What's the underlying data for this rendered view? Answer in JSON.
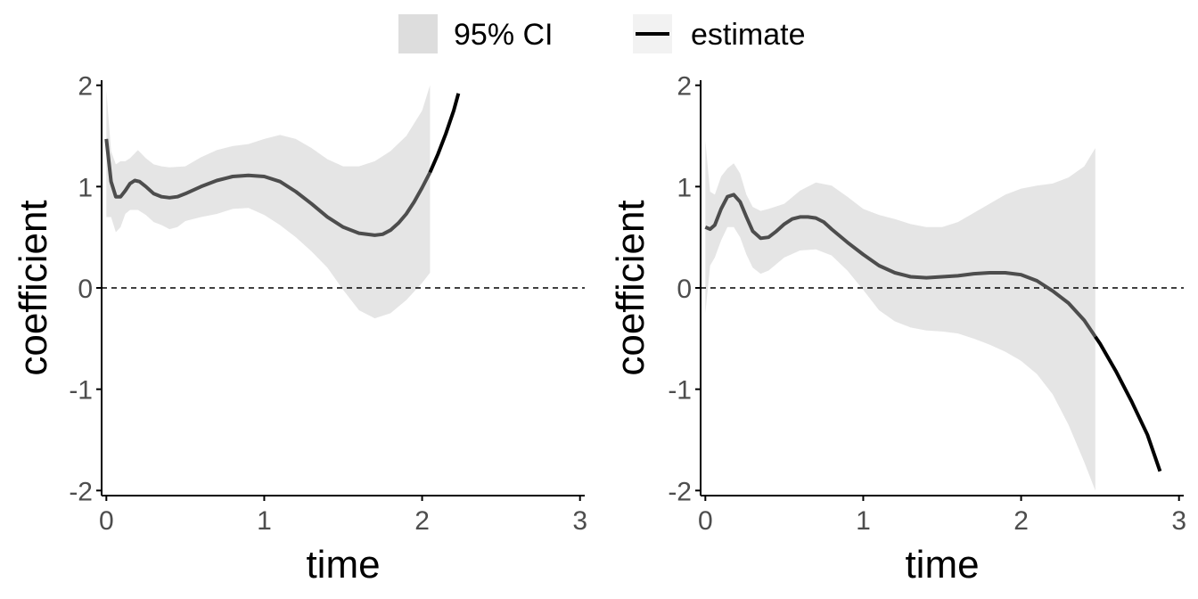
{
  "legend": {
    "items": [
      {
        "label": "95% CI",
        "key": "ribbon"
      },
      {
        "label": "estimate",
        "key": "line"
      }
    ]
  },
  "colors": {
    "ribbon": "#e5e5e5",
    "legend_ribbon": "#dddddd",
    "legend_key_bg": "#f2f2f2",
    "line_in_ci": "#4d4d4d",
    "line_extrap": "#000000",
    "zero_line": "#000000",
    "axis": "#000000",
    "tick_text": "#4d4d4d"
  },
  "chart_data": [
    {
      "type": "line",
      "xlabel": "time",
      "ylabel": "coefficient",
      "xlim": [
        -0.03,
        3.03
      ],
      "ylim": [
        -2.05,
        2.05
      ],
      "xticks": [
        0,
        1,
        2,
        3
      ],
      "yticks": [
        -2,
        -1,
        0,
        1,
        2
      ],
      "xtick_labels": [
        "0",
        "1",
        "2",
        "3"
      ],
      "ytick_labels": [
        "-2",
        "-1",
        "0",
        "1",
        "2"
      ],
      "reference_line": {
        "y": 0,
        "style": "dashed"
      },
      "ci_end": 2.05,
      "estimate": {
        "x": [
          0.0,
          0.03,
          0.06,
          0.09,
          0.12,
          0.15,
          0.18,
          0.21,
          0.25,
          0.3,
          0.35,
          0.4,
          0.45,
          0.5,
          0.6,
          0.7,
          0.8,
          0.9,
          1.0,
          1.1,
          1.2,
          1.3,
          1.4,
          1.5,
          1.6,
          1.7,
          1.75,
          1.8,
          1.85,
          1.9,
          1.95,
          2.0,
          2.05,
          2.1,
          2.15,
          2.2,
          2.23
        ],
        "y": [
          1.47,
          1.05,
          0.9,
          0.9,
          0.96,
          1.03,
          1.06,
          1.05,
          1.0,
          0.93,
          0.9,
          0.89,
          0.9,
          0.93,
          1.0,
          1.06,
          1.1,
          1.11,
          1.1,
          1.05,
          0.95,
          0.83,
          0.7,
          0.6,
          0.54,
          0.52,
          0.53,
          0.57,
          0.64,
          0.73,
          0.85,
          0.99,
          1.14,
          1.32,
          1.52,
          1.75,
          1.92
        ]
      },
      "ci_upper": {
        "x": [
          0.0,
          0.03,
          0.06,
          0.09,
          0.12,
          0.15,
          0.2,
          0.25,
          0.3,
          0.35,
          0.4,
          0.5,
          0.6,
          0.7,
          0.8,
          0.9,
          1.0,
          1.1,
          1.2,
          1.3,
          1.4,
          1.5,
          1.6,
          1.7,
          1.8,
          1.9,
          2.0,
          2.05
        ],
        "y": [
          1.95,
          1.35,
          1.22,
          1.25,
          1.25,
          1.28,
          1.36,
          1.28,
          1.22,
          1.2,
          1.19,
          1.2,
          1.29,
          1.36,
          1.4,
          1.42,
          1.47,
          1.51,
          1.47,
          1.38,
          1.27,
          1.2,
          1.2,
          1.25,
          1.35,
          1.5,
          1.75,
          2.0
        ]
      },
      "ci_lower": {
        "x": [
          0.0,
          0.03,
          0.06,
          0.09,
          0.12,
          0.15,
          0.2,
          0.25,
          0.3,
          0.35,
          0.4,
          0.45,
          0.5,
          0.6,
          0.7,
          0.8,
          0.9,
          1.0,
          1.1,
          1.2,
          1.3,
          1.4,
          1.5,
          1.6,
          1.7,
          1.8,
          1.9,
          2.0,
          2.05
        ],
        "y": [
          0.7,
          0.7,
          0.55,
          0.6,
          0.73,
          0.77,
          0.77,
          0.72,
          0.65,
          0.62,
          0.58,
          0.6,
          0.66,
          0.7,
          0.73,
          0.78,
          0.79,
          0.72,
          0.62,
          0.5,
          0.36,
          0.2,
          -0.02,
          -0.22,
          -0.3,
          -0.25,
          -0.12,
          0.05,
          0.15
        ]
      }
    },
    {
      "type": "line",
      "xlabel": "time",
      "ylabel": "coefficient",
      "xlim": [
        -0.03,
        3.03
      ],
      "ylim": [
        -2.05,
        2.05
      ],
      "xticks": [
        0,
        1,
        2,
        3
      ],
      "yticks": [
        -2,
        -1,
        0,
        1,
        2
      ],
      "xtick_labels": [
        "0",
        "1",
        "2",
        "3"
      ],
      "ytick_labels": [
        "-2",
        "-1",
        "0",
        "1",
        "2"
      ],
      "reference_line": {
        "y": 0,
        "style": "dashed"
      },
      "ci_end": 2.47,
      "estimate": {
        "x": [
          0.0,
          0.03,
          0.06,
          0.1,
          0.14,
          0.18,
          0.22,
          0.26,
          0.3,
          0.35,
          0.4,
          0.45,
          0.5,
          0.55,
          0.6,
          0.65,
          0.7,
          0.75,
          0.8,
          0.9,
          1.0,
          1.1,
          1.2,
          1.3,
          1.4,
          1.5,
          1.6,
          1.7,
          1.8,
          1.9,
          2.0,
          2.1,
          2.2,
          2.3,
          2.4,
          2.5,
          2.6,
          2.7,
          2.8,
          2.88
        ],
        "y": [
          0.6,
          0.58,
          0.62,
          0.78,
          0.9,
          0.92,
          0.85,
          0.7,
          0.56,
          0.49,
          0.5,
          0.56,
          0.63,
          0.68,
          0.7,
          0.7,
          0.69,
          0.65,
          0.58,
          0.45,
          0.33,
          0.22,
          0.15,
          0.11,
          0.1,
          0.11,
          0.12,
          0.14,
          0.15,
          0.15,
          0.13,
          0.07,
          -0.03,
          -0.15,
          -0.32,
          -0.55,
          -0.82,
          -1.12,
          -1.45,
          -1.81
        ]
      },
      "ci_upper": {
        "x": [
          0.0,
          0.03,
          0.06,
          0.1,
          0.14,
          0.18,
          0.22,
          0.26,
          0.3,
          0.35,
          0.4,
          0.5,
          0.6,
          0.7,
          0.8,
          0.9,
          1.0,
          1.1,
          1.2,
          1.3,
          1.4,
          1.5,
          1.6,
          1.7,
          1.8,
          1.9,
          2.0,
          2.1,
          2.2,
          2.3,
          2.4,
          2.47
        ],
        "y": [
          1.45,
          0.95,
          0.92,
          1.1,
          1.18,
          1.23,
          1.13,
          0.92,
          0.8,
          0.76,
          0.78,
          0.83,
          0.96,
          1.04,
          1.01,
          0.9,
          0.78,
          0.72,
          0.68,
          0.63,
          0.6,
          0.6,
          0.65,
          0.74,
          0.83,
          0.92,
          0.98,
          1.01,
          1.03,
          1.09,
          1.2,
          1.38
        ]
      },
      "ci_lower": {
        "x": [
          0.0,
          0.03,
          0.06,
          0.1,
          0.14,
          0.18,
          0.22,
          0.26,
          0.3,
          0.35,
          0.4,
          0.5,
          0.6,
          0.7,
          0.8,
          0.9,
          1.0,
          1.1,
          1.2,
          1.3,
          1.4,
          1.5,
          1.6,
          1.7,
          1.8,
          1.9,
          2.0,
          2.1,
          2.2,
          2.3,
          2.4,
          2.47
        ],
        "y": [
          -0.25,
          0.22,
          0.3,
          0.47,
          0.6,
          0.6,
          0.5,
          0.33,
          0.2,
          0.14,
          0.17,
          0.3,
          0.37,
          0.38,
          0.32,
          0.17,
          -0.02,
          -0.22,
          -0.33,
          -0.39,
          -0.42,
          -0.43,
          -0.45,
          -0.5,
          -0.56,
          -0.63,
          -0.72,
          -0.85,
          -1.05,
          -1.35,
          -1.72,
          -2.0
        ]
      }
    }
  ]
}
